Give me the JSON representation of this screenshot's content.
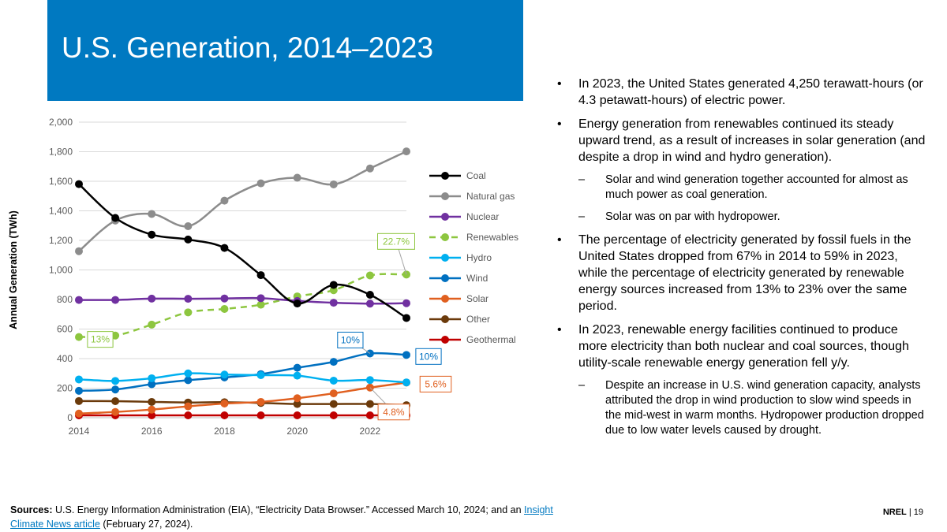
{
  "slide": {
    "title": "U.S. Generation, 2014–2023",
    "footer_org": "NREL",
    "footer_sep": "|",
    "page_number": "19",
    "title_bar_color": "#0079c1"
  },
  "bullets": [
    {
      "text": "In 2023, the United States generated 4,250 terawatt-hours (or 4.3 petawatt-hours) of electric power.",
      "subs": []
    },
    {
      "text": "Energy generation from renewables continued its steady upward trend, as a result of increases in solar generation (and despite a drop in wind and hydro generation).",
      "subs": [
        "Solar and wind generation together accounted for almost as much power as coal generation.",
        "Solar was on par with hydropower."
      ]
    },
    {
      "text": "The percentage of electricity generated by fossil fuels in the United States dropped from 67% in 2014 to 59% in 2023, while the percentage of electricity generated by renewable energy sources increased from 13% to 23% over the same period.",
      "subs": []
    },
    {
      "text": "In 2023, renewable energy facilities continued to produce more electricity than both nuclear and coal sources, though utility-scale renewable energy generation fell y/y.",
      "subs": [
        "Despite an increase in U.S. wind generation capacity, analysts attributed the drop in wind production to slow wind speeds in the mid-west in warm months. Hydropower production dropped due to low water levels caused by drought."
      ]
    }
  ],
  "sources": {
    "label": "Sources:",
    "text_before": "U.S. Energy Information Administration (EIA), “Electricity Data Browser.” Accessed March 10, 2024; and an",
    "link_text": "Insight Climate News article",
    "text_after": "(February 27, 2024)."
  },
  "chart_data": {
    "type": "line",
    "title": "",
    "xlabel": "",
    "ylabel": "Annual Generation (TWh)",
    "x": [
      2014,
      2015,
      2016,
      2017,
      2018,
      2019,
      2020,
      2021,
      2022,
      2023
    ],
    "xticks": [
      "2014",
      "2016",
      "2018",
      "2020",
      "2022"
    ],
    "yticks": [
      "0",
      "200",
      "400",
      "600",
      "800",
      "1,000",
      "1,200",
      "1,400",
      "1,600",
      "1,800",
      "2,000"
    ],
    "ylim": [
      0,
      2000
    ],
    "grid": true,
    "legend_position": "right",
    "series": [
      {
        "name": "Coal",
        "color": "#000000",
        "dashed": false,
        "values": [
          1581,
          1352,
          1239,
          1206,
          1149,
          965,
          773,
          899,
          832,
          675
        ]
      },
      {
        "name": "Natural gas",
        "color": "#8c8c8c",
        "dashed": false,
        "values": [
          1127,
          1334,
          1379,
          1296,
          1469,
          1586,
          1624,
          1579,
          1687,
          1802
        ]
      },
      {
        "name": "Nuclear",
        "color": "#7030a0",
        "dashed": false,
        "values": [
          797,
          797,
          806,
          805,
          807,
          809,
          790,
          778,
          772,
          775
        ]
      },
      {
        "name": "Renewables",
        "color": "#8dc63f",
        "dashed": true,
        "values": [
          546,
          556,
          630,
          713,
          736,
          765,
          821,
          863,
          963,
          969
        ]
      },
      {
        "name": "Hydro",
        "color": "#00b0f0",
        "dashed": false,
        "values": [
          259,
          249,
          267,
          300,
          292,
          288,
          285,
          251,
          255,
          239
        ]
      },
      {
        "name": "Wind",
        "color": "#0070c0",
        "dashed": false,
        "values": [
          182,
          191,
          227,
          254,
          273,
          295,
          338,
          378,
          435,
          425
        ]
      },
      {
        "name": "Solar",
        "color": "#e06020",
        "dashed": false,
        "values": [
          28,
          39,
          55,
          77,
          96,
          107,
          132,
          165,
          204,
          238
        ]
      },
      {
        "name": "Other",
        "color": "#6b3a0b",
        "dashed": false,
        "values": [
          113,
          112,
          107,
          103,
          105,
          100,
          93,
          93,
          93,
          85
        ]
      },
      {
        "name": "Geothermal",
        "color": "#c00000",
        "dashed": false,
        "values": [
          16,
          16,
          16,
          16,
          16,
          16,
          16,
          16,
          16,
          16
        ]
      }
    ],
    "annotations": [
      {
        "text": "13%",
        "color": "#8dc63f",
        "series": "Renewables",
        "x": 2014
      },
      {
        "text": "22.7%",
        "color": "#8dc63f",
        "series": "Renewables",
        "x": 2023
      },
      {
        "text": "10%",
        "color": "#0070c0",
        "series": "Wind",
        "x": 2022
      },
      {
        "text": "10%",
        "color": "#0070c0",
        "series": "Wind",
        "x": 2023
      },
      {
        "text": "5.6%",
        "color": "#e06020",
        "series": "Solar",
        "x": 2023
      },
      {
        "text": "4.8%",
        "color": "#e06020",
        "series": "Solar",
        "x": 2022
      }
    ]
  }
}
